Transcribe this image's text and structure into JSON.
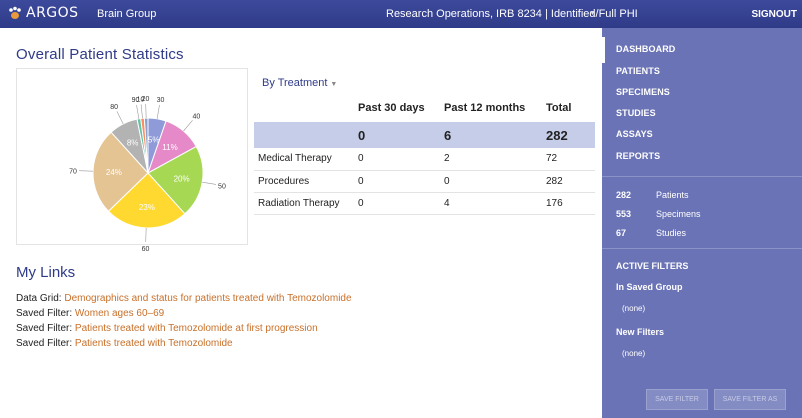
{
  "header": {
    "app_name": "ARGOS",
    "group": "Brain Group",
    "project": "Research Operations, IRB 8234 | Identified/Full PHI",
    "signout": "SIGNOUT"
  },
  "main": {
    "stats_title": "Overall Patient Statistics",
    "treatment_dropdown": "By Treatment",
    "table": {
      "columns": [
        "",
        "Past 30 days",
        "Past 12 months",
        "Total"
      ],
      "summary": [
        "",
        "0",
        "6",
        "282"
      ],
      "rows": [
        [
          "Medical Therapy",
          "0",
          "2",
          "72"
        ],
        [
          "Procedures",
          "0",
          "0",
          "282"
        ],
        [
          "Radiation Therapy",
          "0",
          "4",
          "176"
        ]
      ]
    },
    "links_title": "My Links",
    "links": [
      {
        "prefix": "Data Grid:",
        "text": "Demographics and status for patients treated with Temozolomide"
      },
      {
        "prefix": "Saved Filter:",
        "text": "Women ages 60–69"
      },
      {
        "prefix": "Saved Filter:",
        "text": "Patients treated with Temozolomide at first progression"
      },
      {
        "prefix": "Saved Filter:",
        "text": "Patients treated with Temozolomide"
      }
    ]
  },
  "chart_data": {
    "type": "pie",
    "slices": [
      {
        "value": 5,
        "pct_label": "5%",
        "outer_label": "30",
        "color": "#8e9bd8"
      },
      {
        "value": 11,
        "pct_label": "11%",
        "outer_label": "40",
        "color": "#e689c8"
      },
      {
        "value": 20,
        "pct_label": "20%",
        "outer_label": "50",
        "color": "#a6d854"
      },
      {
        "value": 23,
        "pct_label": "23%",
        "outer_label": "60",
        "color": "#ffd92f"
      },
      {
        "value": 24,
        "pct_label": "24%",
        "outer_label": "70",
        "color": "#e5c494"
      },
      {
        "value": 8,
        "pct_label": "8%",
        "outer_label": "80",
        "color": "#b3b3b3"
      },
      {
        "value": 1,
        "pct_label": "",
        "outer_label": "90",
        "color": "#66c2a5"
      },
      {
        "value": 1,
        "pct_label": "",
        "outer_label": "10",
        "color": "#fc8d62"
      },
      {
        "value": 1,
        "pct_label": "",
        "outer_label": "20",
        "color": "#8da0cb"
      }
    ]
  },
  "sidebar": {
    "nav": [
      "DASHBOARD",
      "PATIENTS",
      "SPECIMENS",
      "STUDIES",
      "ASSAYS",
      "REPORTS"
    ],
    "counts": [
      {
        "num": "282",
        "label": "Patients"
      },
      {
        "num": "553",
        "label": "Specimens"
      },
      {
        "num": "67",
        "label": "Studies"
      }
    ],
    "active_filters_title": "ACTIVE FILTERS",
    "saved_group_title": "In Saved Group",
    "saved_group_value": "(none)",
    "new_filters_title": "New Filters",
    "new_filters_value": "(none)",
    "save_filter": "SAVE FILTER",
    "save_filter_as": "SAVE FILTER AS"
  }
}
